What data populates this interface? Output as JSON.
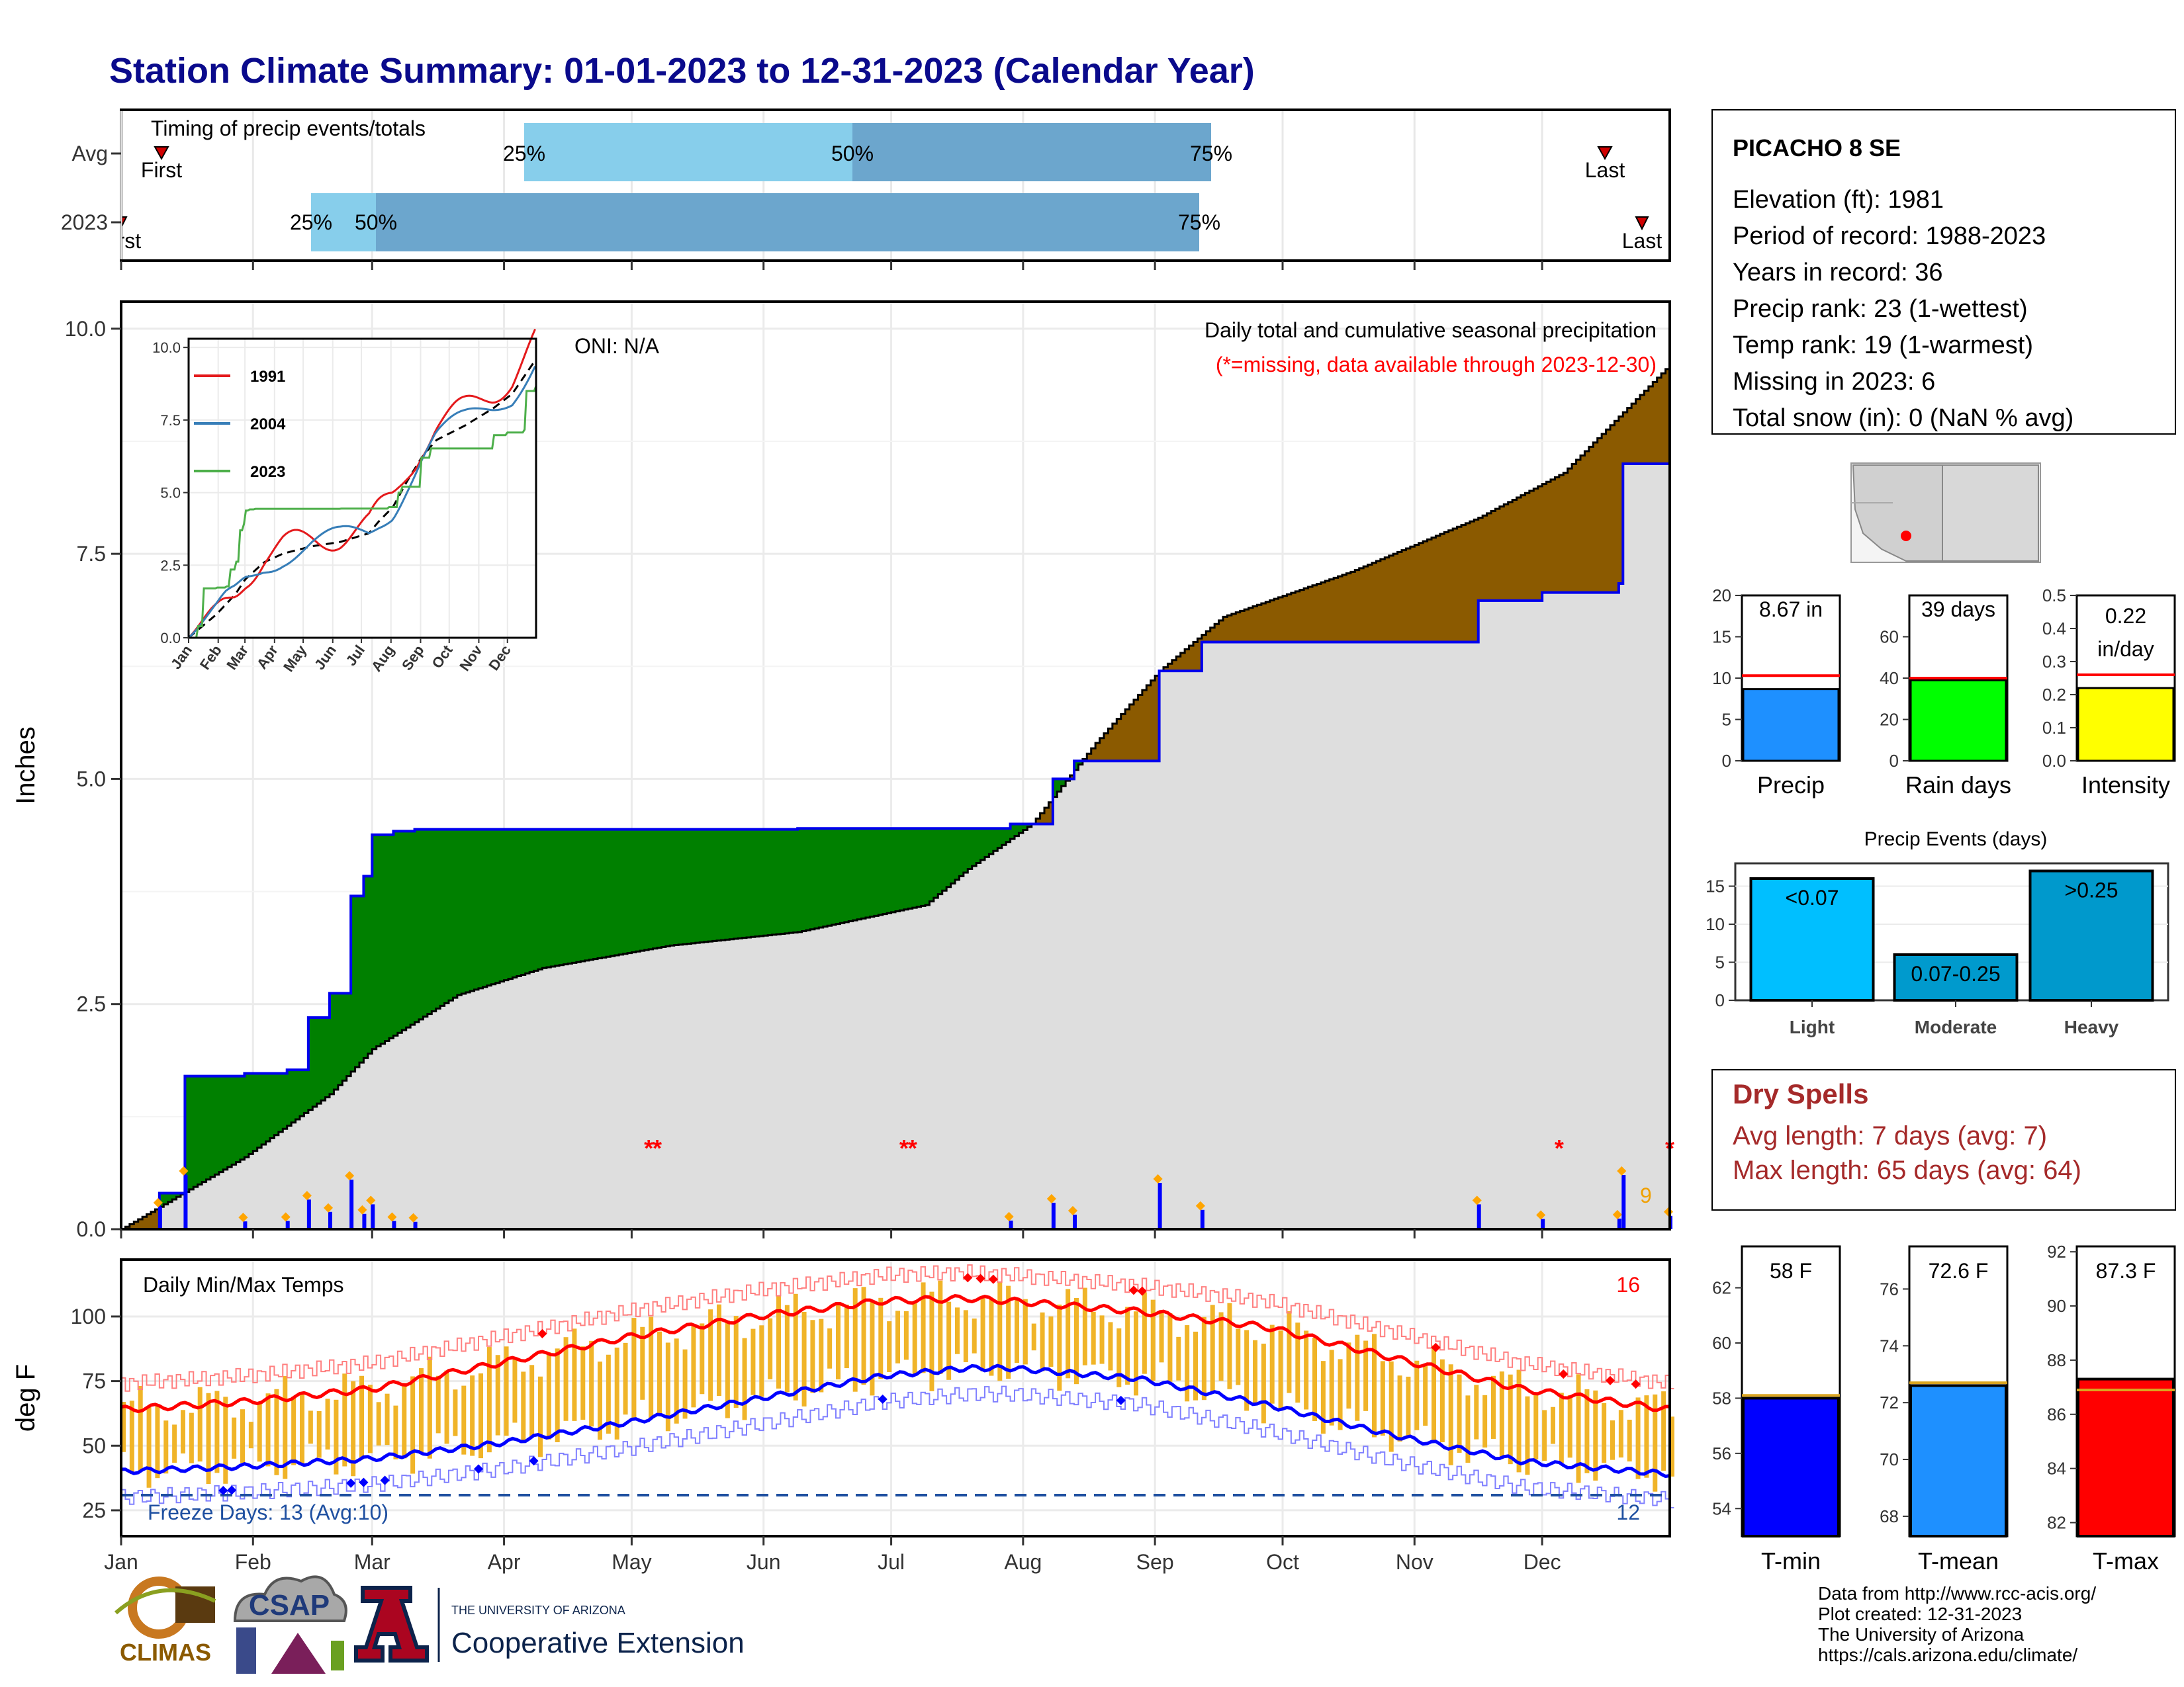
{
  "title": "Station Climate Summary: 01-01-2023 to 12-31-2023 (Calendar Year)",
  "colors": {
    "title": "#0a0a8c",
    "precip_line": "#0000ee",
    "deficit_green": "#008000",
    "surplus_brown": "#8b5a00",
    "avg_fill": "#dedede",
    "tmax_bar": "#f0b428",
    "tmax_line": "#ff0000",
    "tmin_line": "#0000ff",
    "dry_spell": "#a52a2a",
    "timing_light": "#87ceeb",
    "timing_dark": "#6ca6cd"
  },
  "timing": {
    "title": "Timing of precip events/totals",
    "rows": [
      {
        "label": "Avg",
        "first_label": "First",
        "last_label": "Last",
        "p25": "25%",
        "p50": "50%",
        "p75": "75%"
      },
      {
        "label": "2023",
        "first_label": "First",
        "last_label": "Last",
        "p25": "25%",
        "p50": "50%",
        "p75": "75%"
      }
    ]
  },
  "precip_panel": {
    "ylabel": "Inches",
    "yticks": [
      "0.0",
      "2.5",
      "5.0",
      "7.5",
      "10.0"
    ],
    "oni": "ONI: N/A",
    "caption": "Daily total and cumulative seasonal precipitation",
    "missing_note": "(*=missing, data available through 2023-12-30)",
    "count_label": "9"
  },
  "inset": {
    "years": [
      "1991",
      "2004",
      "2023"
    ],
    "yticks": [
      "0.0",
      "2.5",
      "5.0",
      "7.5",
      "10.0"
    ],
    "months": [
      "Jan",
      "Feb",
      "Mar",
      "Apr",
      "May",
      "Jun",
      "Jul",
      "Aug",
      "Sep",
      "Oct",
      "Nov",
      "Dec"
    ]
  },
  "temp_panel": {
    "ylabel": "deg F",
    "title": "Daily Min/Max Temps",
    "yticks": [
      "25",
      "50",
      "75",
      "100"
    ],
    "freeze_label": "Freeze Days: 13 (Avg:10)",
    "hot_count": "16",
    "cold_count": "12"
  },
  "months": [
    "Jan",
    "Feb",
    "Mar",
    "Apr",
    "May",
    "Jun",
    "Jul",
    "Aug",
    "Sep",
    "Oct",
    "Nov",
    "Dec"
  ],
  "station": {
    "name": "PICACHO 8 SE",
    "lines": [
      "Elevation (ft): 1981",
      "Period of record: 1988-2023",
      "Years in record: 36",
      "Precip rank: 23 (1-wettest)",
      "Temp rank: 19 (1-warmest)",
      "Missing in 2023: 6",
      "Total snow (in): 0 (NaN % avg)"
    ]
  },
  "summary_bars": [
    {
      "name": "Precip",
      "label": "8.67 in",
      "value": 8.67,
      "avg": 10.3,
      "ymax": 20,
      "ticks": [
        "0",
        "5",
        "10",
        "15",
        "20"
      ],
      "color": "#1e90ff"
    },
    {
      "name": "Rain days",
      "label": "39 days",
      "value": 39,
      "avg": 40,
      "ymax": 80,
      "ticks": [
        "0",
        "20",
        "40",
        "60"
      ],
      "color": "#00ff00"
    },
    {
      "name": "Intensity",
      "label": "0.22 in/day",
      "value": 0.22,
      "avg": 0.26,
      "ymax": 0.5,
      "ticks": [
        "0.0",
        "0.1",
        "0.2",
        "0.3",
        "0.4",
        "0.5"
      ],
      "color": "#ffff00"
    }
  ],
  "events": {
    "title": "Precip Events (days)",
    "ticks": [
      "0",
      "5",
      "10",
      "15"
    ],
    "bars": [
      {
        "category": "Light",
        "label": "<0.07",
        "value": 16
      },
      {
        "category": "Moderate",
        "label": "0.07-0.25",
        "value": 6
      },
      {
        "category": "Heavy",
        "label": ">0.25",
        "value": 17
      }
    ]
  },
  "dry_spells": {
    "title": "Dry Spells",
    "avg_length": "Avg length: 7 days (avg: 7)",
    "max_length": "Max length: 65 days (avg: 64)"
  },
  "temp_bars": [
    {
      "name": "T-min",
      "label": "58 F",
      "value": 58,
      "avg": 58.1,
      "ymin": 53,
      "ymax": 63.5,
      "ticks": [
        "54",
        "56",
        "58",
        "60",
        "62"
      ],
      "color": "#0000ff"
    },
    {
      "name": "T-mean",
      "label": "72.6 F",
      "value": 72.6,
      "avg": 72.7,
      "ymin": 67.3,
      "ymax": 77.5,
      "ticks": [
        "68",
        "70",
        "72",
        "74",
        "76"
      ],
      "color": "#1e90ff"
    },
    {
      "name": "T-max",
      "label": "87.3 F",
      "value": 87.3,
      "avg": 86.9,
      "ymin": 81.5,
      "ymax": 92.2,
      "ticks": [
        "82",
        "84",
        "86",
        "88",
        "90",
        "92"
      ],
      "color": "#ff0000"
    }
  ],
  "footer": {
    "lines": [
      "Data from http://www.rcc-acis.org/",
      "Plot created: 12-31-2023",
      "The University of Arizona",
      "https://cals.arizona.edu/climate/"
    ],
    "logo_climas": "CLIMAS",
    "logo_csap": "CSAP",
    "ua_small": "THE UNIVERSITY OF ARIZONA",
    "ua_ext": "Cooperative Extension"
  },
  "chart_data": [
    {
      "type": "bar",
      "title": "Timing of precip events/totals",
      "categories": [
        "Avg",
        "2023"
      ],
      "series": [
        {
          "name": "25%",
          "values": [
            77,
            38
          ]
        },
        {
          "name": "50%",
          "values": [
            144,
            51
          ]
        },
        {
          "name": "75%",
          "values": [
            219,
            218
          ]
        },
        {
          "name": "First",
          "values": [
            8,
            0
          ]
        },
        {
          "name": "Last",
          "values": [
            357,
            365
          ]
        }
      ]
    },
    {
      "type": "area",
      "title": "Daily total and cumulative seasonal precipitation",
      "ylabel": "Inches",
      "ylim": [
        0,
        10.3
      ],
      "series": [
        {
          "name": "cumulative-2023",
          "x": [
            1,
            10,
            15,
            16,
            30,
            40,
            45,
            50,
            55,
            58,
            60,
            65,
            70,
            75,
            120,
            160,
            200,
            210,
            215,
            220,
            225,
            233,
            245,
            255,
            270,
            300,
            320,
            335,
            353,
            354,
            365
          ],
          "y": [
            0,
            0.4,
            0.4,
            1.7,
            1.73,
            1.77,
            2.35,
            2.62,
            3.7,
            3.92,
            4.38,
            4.42,
            4.44,
            4.44,
            4.44,
            4.45,
            4.45,
            4.5,
            4.5,
            5.0,
            5.2,
            5.2,
            6.2,
            6.52,
            6.52,
            6.52,
            6.98,
            7.07,
            7.17,
            8.5,
            8.67
          ]
        },
        {
          "name": "average",
          "x": [
            1,
            30,
            50,
            60,
            80,
            100,
            130,
            160,
            190,
            200,
            215,
            230,
            245,
            260,
            290,
            320,
            340,
            365
          ],
          "y": [
            0,
            0.8,
            1.5,
            2.0,
            2.6,
            2.9,
            3.15,
            3.3,
            3.6,
            4.0,
            4.5,
            5.4,
            6.2,
            6.8,
            7.3,
            7.9,
            8.4,
            9.6
          ]
        }
      ]
    },
    {
      "type": "line",
      "title": "Daily Min/Max Temps",
      "ylabel": "deg F",
      "series": [
        {
          "name": "avg-max",
          "x": [
            1,
            30,
            60,
            90,
            120,
            150,
            180,
            200,
            210,
            240,
            270,
            300,
            330,
            365
          ],
          "y": [
            64,
            67,
            72,
            82,
            92,
            100,
            106,
            107,
            106,
            102,
            96,
            84,
            72,
            64
          ]
        },
        {
          "name": "avg-min",
          "x": [
            1,
            30,
            60,
            90,
            120,
            150,
            180,
            200,
            210,
            240,
            270,
            300,
            330,
            365
          ],
          "y": [
            40,
            42,
            45,
            51,
            59,
            68,
            77,
            80,
            80,
            76,
            66,
            54,
            44,
            39
          ]
        }
      ]
    }
  ]
}
